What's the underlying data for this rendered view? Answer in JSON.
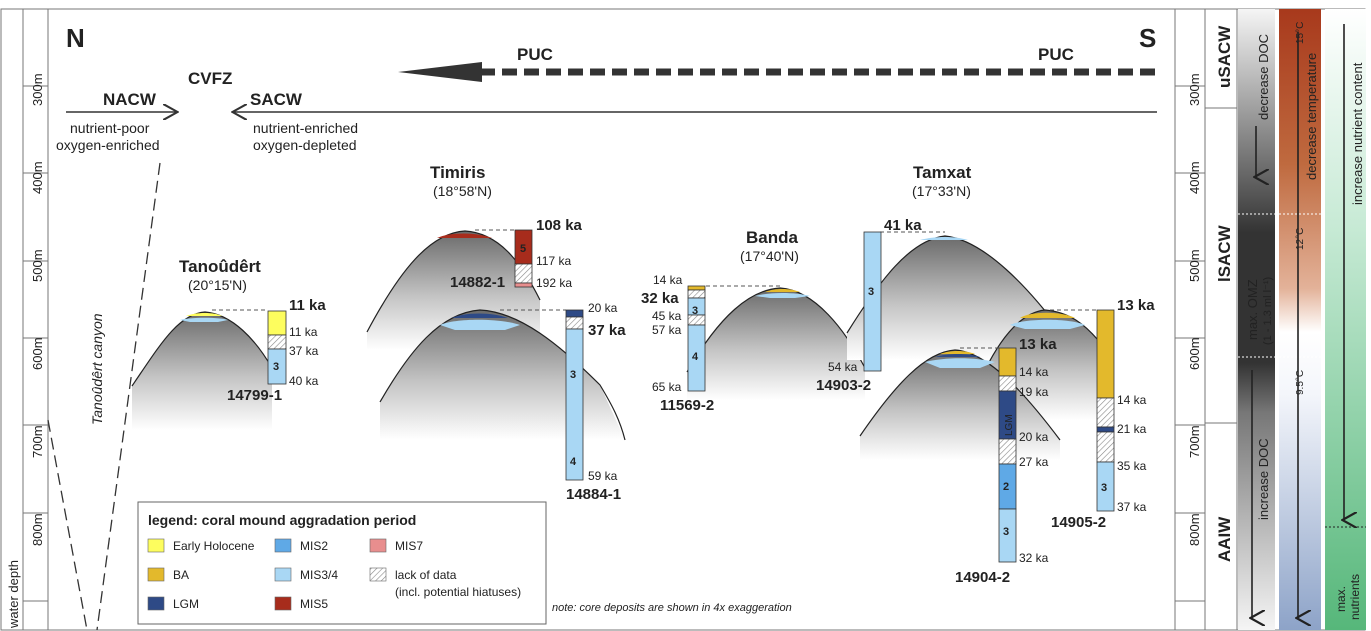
{
  "directions": {
    "north": "N",
    "south": "S"
  },
  "axis": {
    "label": "water depth",
    "ticks": [
      "300m",
      "400m",
      "500m",
      "600m",
      "700m",
      "800m"
    ]
  },
  "currents": {
    "puc_left": "PUC",
    "puc_right": "PUC",
    "cvfz": "CVFZ",
    "nacw": "NACW",
    "sacw": "SACW",
    "nacw_desc_1": "nutrient-poor",
    "nacw_desc_2": "oxygen-enriched",
    "sacw_desc_1": "nutrient-enriched",
    "sacw_desc_2": "oxygen-depleted"
  },
  "canyon_label": "Tanoûdêrt canyon",
  "sites": {
    "tanoudert": {
      "name": "Tanoûdêrt",
      "coord": "(20°15'N)"
    },
    "timiris": {
      "name": "Timiris",
      "coord": "(18°58'N)"
    },
    "banda": {
      "name": "Banda",
      "coord": "(17°40'N)"
    },
    "tamxat": {
      "name": "Tamxat",
      "coord": "(17°33'N)"
    }
  },
  "cores": {
    "c14799": {
      "id": "14799-1",
      "top_age": "11 ka",
      "ages": [
        "11 ka",
        "37 ka",
        "40 ka"
      ],
      "mis": "3"
    },
    "c14882": {
      "id": "14882-1",
      "top_age": "108 ka",
      "ages": [
        "117 ka",
        "192 ka"
      ],
      "mis": "5"
    },
    "c14884": {
      "id": "14884-1",
      "top_age": "37 ka",
      "ages": [
        "20 ka",
        "59 ka"
      ],
      "mis": [
        "3",
        "4"
      ]
    },
    "c11569": {
      "id": "11569-2",
      "top_age": "32 ka",
      "ages": [
        "14 ka",
        "45 ka",
        "57 ka",
        "65 ka"
      ],
      "mis": [
        "3",
        "4"
      ]
    },
    "c14903": {
      "id": "14903-2",
      "top_age": "41 ka",
      "ages": [
        "54 ka"
      ],
      "mis": "3"
    },
    "c14904": {
      "id": "14904-2",
      "top_age": "13 ka",
      "ages": [
        "14 ka",
        "19 ka",
        "20 ka",
        "27 ka",
        "32 ka"
      ],
      "mis": [
        "LGM",
        "2",
        "3"
      ]
    },
    "c14905": {
      "id": "14905-2",
      "top_age": "13 ka",
      "ages": [
        "14 ka",
        "21 ka",
        "35 ka",
        "37 ka"
      ],
      "mis": "3"
    }
  },
  "legend": {
    "title": "legend: coral mound aggradation period",
    "items": [
      {
        "label": "Early Holocene",
        "color": "#fdfd5e"
      },
      {
        "label": "BA",
        "color": "#e3b92c"
      },
      {
        "label": "LGM",
        "color": "#2e4a86"
      },
      {
        "label": "MIS2",
        "color": "#5fa9e6"
      },
      {
        "label": "MIS3/4",
        "color": "#a9d7f4"
      },
      {
        "label": "MIS5",
        "color": "#a72c1c"
      },
      {
        "label": "MIS7",
        "color": "#e88e8e"
      },
      {
        "label": "lack of data",
        "color": "hatch"
      }
    ],
    "hiatus_note": "(incl. potential hiatuses)"
  },
  "note": "note: core deposits are shown in 4x exaggeration",
  "water_masses": [
    "uSACW",
    "lSACW",
    "AAIW"
  ],
  "doc": {
    "decrease": "decrease DOC",
    "increase": "increase DOC",
    "omz_1": "max. OMZ",
    "omz_2": "(1 - 1.3 ml l⁻¹)"
  },
  "temperature": {
    "label": "decrease temperature",
    "t15": "15°C",
    "t12": "12°C",
    "t95": "9.5°C"
  },
  "nutrients": {
    "label": "increase nutrient content",
    "max_1": "max.",
    "max_2": "nutrients"
  }
}
